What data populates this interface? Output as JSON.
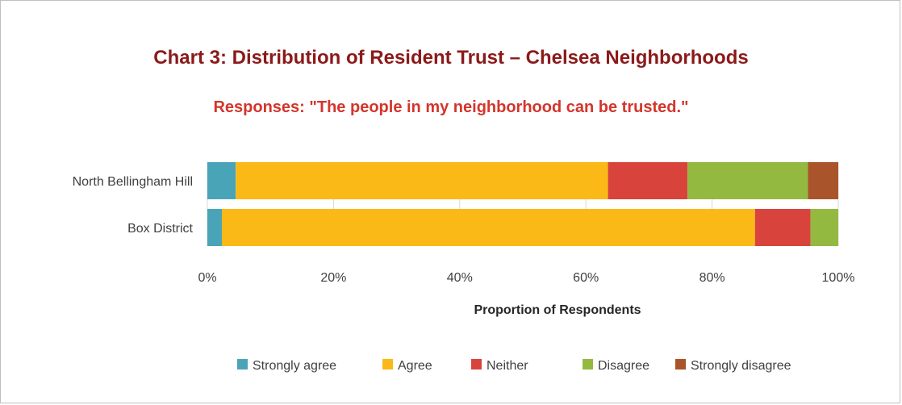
{
  "chart_data": {
    "type": "bar",
    "orientation": "horizontal",
    "stacked": true,
    "percent_stacked": true,
    "title": "Chart 3: Distribution of Resident Trust – Chelsea Neighborhoods",
    "subtitle": "Responses: \"The people in my neighborhood can be trusted.\"",
    "xlabel": "Proportion of Respondents",
    "ylabel": "",
    "xlim": [
      0,
      100
    ],
    "x_ticks": [
      "0%",
      "20%",
      "40%",
      "60%",
      "80%",
      "100%"
    ],
    "categories": [
      "North Bellingham Hill",
      "Box District"
    ],
    "series": [
      {
        "name": "Strongly agree",
        "color": "#4aa4b8",
        "values": [
          4.5,
          2.3
        ]
      },
      {
        "name": "Agree",
        "color": "#fbb917",
        "values": [
          59.0,
          84.5
        ]
      },
      {
        "name": "Neither",
        "color": "#d8443c",
        "values": [
          12.6,
          8.8
        ]
      },
      {
        "name": "Disagree",
        "color": "#94b940",
        "values": [
          19.1,
          4.4
        ]
      },
      {
        "name": "Strongly disagree",
        "color": "#a9542a",
        "values": [
          4.8,
          0.0
        ]
      }
    ],
    "grid": true,
    "legend_position": "bottom"
  }
}
